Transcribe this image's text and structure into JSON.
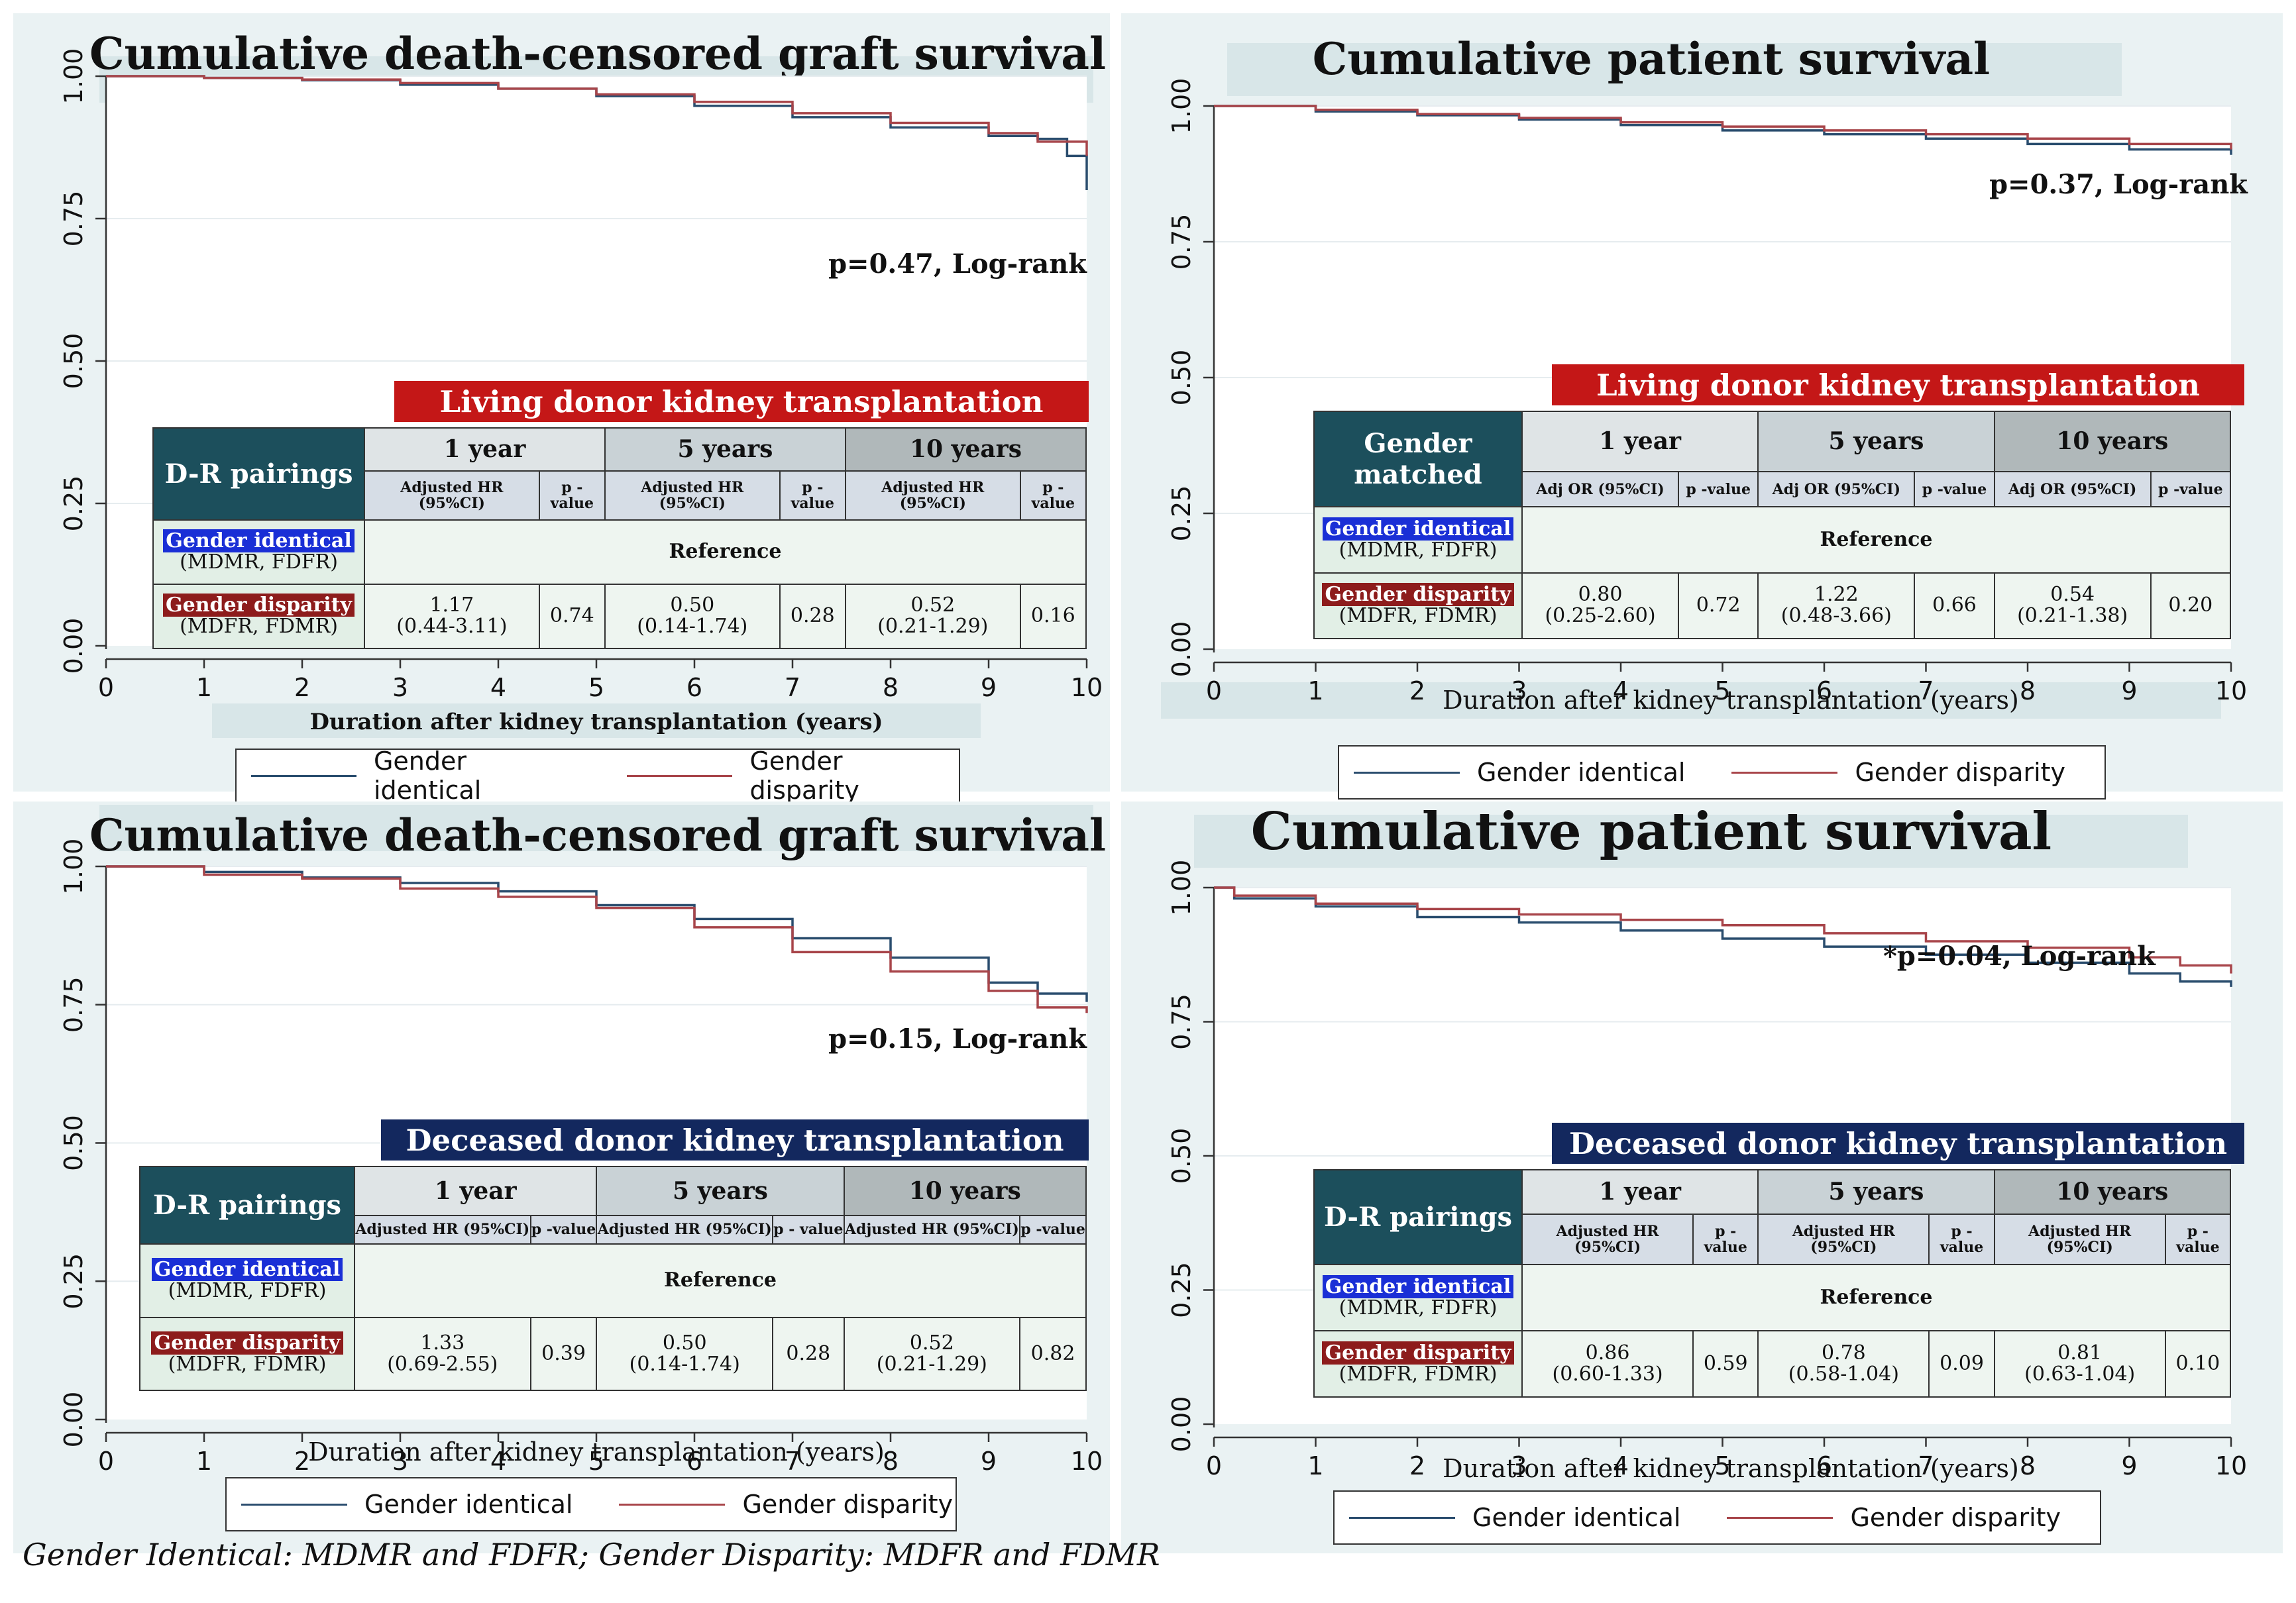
{
  "footnote": "Gender Identical: MDMR and FDFR; Gender Disparity: MDFR and FDMR",
  "colors": {
    "gender_identical": "#2a4d6e",
    "gender_disparity": "#a8454a",
    "living_banner": "#c41717",
    "deceased_banner": "#13285e"
  },
  "legend": {
    "identical": "Gender identical",
    "disparity": "Gender disparity"
  },
  "chart_data": [
    {
      "type": "line",
      "title": "Cumulative death-censored graft survival",
      "xlabel": "Duration after kidney transplantation (years)",
      "ylabel": "",
      "xlim": [
        0,
        10
      ],
      "ylim": [
        0,
        1
      ],
      "xticks": [
        "0",
        "1",
        "2",
        "3",
        "4",
        "5",
        "6",
        "7",
        "8",
        "9",
        "10"
      ],
      "yticks": [
        "0.00",
        "0.25",
        "0.50",
        "0.75",
        "1.00"
      ],
      "annotation": "p=0.47, Log-rank",
      "series": [
        {
          "name": "Gender identical",
          "x": [
            0,
            1,
            2,
            3,
            4,
            5,
            6,
            7,
            8,
            9,
            9.5,
            9.8,
            10
          ],
          "y": [
            1.0,
            0.997,
            0.993,
            0.985,
            0.978,
            0.965,
            0.948,
            0.928,
            0.91,
            0.895,
            0.89,
            0.86,
            0.8
          ]
        },
        {
          "name": "Gender disparity",
          "x": [
            0,
            1,
            2,
            3,
            4,
            5,
            6,
            7,
            8,
            9,
            9.5,
            10
          ],
          "y": [
            1.0,
            0.997,
            0.994,
            0.988,
            0.978,
            0.968,
            0.955,
            0.935,
            0.918,
            0.9,
            0.885,
            0.86
          ]
        }
      ],
      "table": {
        "banner": "Living donor kidney transplantation",
        "head": "D-R pairings",
        "periods": [
          "1 year",
          "5 years",
          "10 years"
        ],
        "sub_est": "Adjusted HR (95%CI)",
        "sub_p": [
          "p -value",
          "p -value",
          "p -value"
        ],
        "gi_label": "Gender identical",
        "gi_sub": "(MDMR, FDFR)",
        "gd_label": "Gender disparity",
        "gd_sub": "(MDFR, FDMR)",
        "reference": "Reference",
        "est": [
          "1.17",
          "0.50",
          "0.52"
        ],
        "ci": [
          "(0.44-3.11)",
          "(0.14-1.74)",
          "(0.21-1.29)"
        ],
        "p": [
          "0.74",
          "0.28",
          "0.16"
        ]
      }
    },
    {
      "type": "line",
      "title": "Cumulative patient survival",
      "xlabel": "Duration after kidney transplantation (years)",
      "ylabel": "",
      "xlim": [
        0,
        10
      ],
      "ylim": [
        0,
        1
      ],
      "xticks": [
        "0",
        "1",
        "2",
        "3",
        "4",
        "5",
        "6",
        "7",
        "8",
        "9",
        "10"
      ],
      "yticks": [
        "0.00",
        "0.25",
        "0.50",
        "0.75",
        "1.00"
      ],
      "annotation": "p=0.37, Log-rank",
      "series": [
        {
          "name": "Gender identical",
          "x": [
            0,
            1,
            2,
            3,
            4,
            5,
            6,
            7,
            8,
            9,
            10
          ],
          "y": [
            1.0,
            0.99,
            0.983,
            0.975,
            0.965,
            0.955,
            0.948,
            0.94,
            0.93,
            0.92,
            0.91
          ]
        },
        {
          "name": "Gender disparity",
          "x": [
            0,
            1,
            2,
            3,
            4,
            5,
            6,
            7,
            8,
            9,
            10
          ],
          "y": [
            1.0,
            0.993,
            0.985,
            0.978,
            0.97,
            0.962,
            0.955,
            0.948,
            0.94,
            0.93,
            0.92
          ]
        }
      ],
      "table": {
        "banner": "Living donor kidney transplantation",
        "head": "Gender matched",
        "periods": [
          "1 year",
          "5 years",
          "10 years"
        ],
        "sub_est": "Adj OR (95%CI)",
        "sub_p": [
          "p -value",
          "p -value",
          "p -value"
        ],
        "gi_label": "Gender identical",
        "gi_sub": "(MDMR, FDFR)",
        "gd_label": "Gender disparity",
        "gd_sub": "(MDFR, FDMR)",
        "reference": "Reference",
        "est": [
          "0.80",
          "1.22",
          "0.54"
        ],
        "ci": [
          "(0.25-2.60)",
          "(0.48-3.66)",
          "(0.21-1.38)"
        ],
        "p": [
          "0.72",
          "0.66",
          "0.20"
        ]
      }
    },
    {
      "type": "line",
      "title": "Cumulative death-censored graft survival",
      "xlabel": "Duration after kidney transplantation (years)",
      "ylabel": "",
      "xlim": [
        0,
        10
      ],
      "ylim": [
        0,
        1
      ],
      "xticks": [
        "0",
        "1",
        "2",
        "3",
        "4",
        "5",
        "6",
        "7",
        "8",
        "9",
        "10"
      ],
      "yticks": [
        "0.00",
        "0.25",
        "0.50",
        "0.75",
        "1.00"
      ],
      "annotation": "p=0.15, Log-rank",
      "series": [
        {
          "name": "Gender identical",
          "x": [
            0,
            1,
            2,
            3,
            4,
            5,
            6,
            7,
            8,
            9,
            9.5,
            10
          ],
          "y": [
            1.0,
            0.99,
            0.98,
            0.97,
            0.955,
            0.93,
            0.905,
            0.87,
            0.835,
            0.79,
            0.77,
            0.755
          ]
        },
        {
          "name": "Gender disparity",
          "x": [
            0,
            1,
            2,
            3,
            4,
            5,
            6,
            7,
            8,
            9,
            9.5,
            10
          ],
          "y": [
            1.0,
            0.985,
            0.978,
            0.96,
            0.945,
            0.925,
            0.89,
            0.845,
            0.81,
            0.775,
            0.745,
            0.735
          ]
        }
      ],
      "table": {
        "banner": "Deceased donor kidney transplantation",
        "head": "D-R pairings",
        "periods": [
          "1 year",
          "5 years",
          "10 years"
        ],
        "sub_est": "Adjusted HR (95%CI)",
        "sub_p": [
          "p -value",
          "p - value",
          "p -value"
        ],
        "gi_label": "Gender identical",
        "gi_sub": "(MDMR, FDFR)",
        "gd_label": "Gender disparity",
        "gd_sub": "(MDFR, FDMR)",
        "reference": "Reference",
        "est": [
          "1.33",
          "0.50",
          "0.52"
        ],
        "ci": [
          "(0.69-2.55)",
          "(0.14-1.74)",
          "(0.21-1.29)"
        ],
        "p": [
          "0.39",
          "0.28",
          "0.82"
        ]
      }
    },
    {
      "type": "line",
      "title": "Cumulative patient survival",
      "xlabel": "Duration after kidney transplantation (years)",
      "ylabel": "",
      "xlim": [
        0,
        10
      ],
      "ylim": [
        0,
        1
      ],
      "xticks": [
        "0",
        "1",
        "2",
        "3",
        "4",
        "5",
        "6",
        "7",
        "8",
        "9",
        "10"
      ],
      "yticks": [
        "0.00",
        "0.25",
        "0.50",
        "0.75",
        "1.00"
      ],
      "annotation": "*p=0.04, Log-rank",
      "series": [
        {
          "name": "Gender identical",
          "x": [
            0,
            0.2,
            1,
            2,
            3,
            4,
            5,
            6,
            7,
            8,
            9,
            9.5,
            10
          ],
          "y": [
            1.0,
            0.98,
            0.965,
            0.945,
            0.935,
            0.92,
            0.905,
            0.89,
            0.875,
            0.86,
            0.84,
            0.825,
            0.815
          ]
        },
        {
          "name": "Gender disparity",
          "x": [
            0,
            0.2,
            1,
            2,
            3,
            4,
            5,
            6,
            7,
            8,
            9,
            9.5,
            10
          ],
          "y": [
            1.0,
            0.985,
            0.97,
            0.96,
            0.95,
            0.94,
            0.93,
            0.915,
            0.9,
            0.888,
            0.87,
            0.855,
            0.84
          ]
        }
      ],
      "table": {
        "banner": "Deceased donor kidney transplantation",
        "head": "D-R pairings",
        "periods": [
          "1 year",
          "5 years",
          "10 years"
        ],
        "sub_est": "Adjusted HR (95%CI)",
        "sub_p": [
          "p -value",
          "p -value",
          "p -value"
        ],
        "gi_label": "Gender identical",
        "gi_sub": "(MDMR, FDFR)",
        "gd_label": "Gender disparity",
        "gd_sub": "(MDFR, FDMR)",
        "reference": "Reference",
        "est": [
          "0.86",
          "0.78",
          "0.81"
        ],
        "ci": [
          "(0.60-1.33)",
          "(0.58-1.04)",
          "(0.63-1.04)"
        ],
        "p": [
          "0.59",
          "0.09",
          "0.10"
        ]
      }
    }
  ]
}
